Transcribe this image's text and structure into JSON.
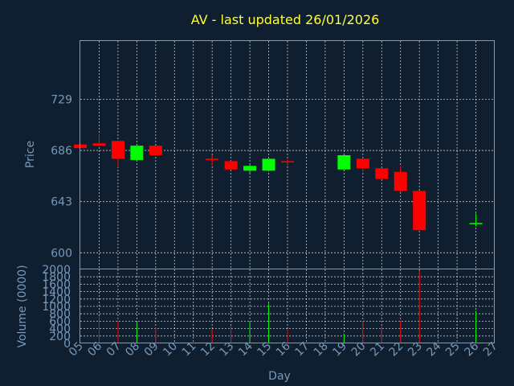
{
  "chart_data": {
    "type": "candlestick",
    "title": "AV - last updated 26/01/2026",
    "xlabel": "Day",
    "ylabel_price": "Price",
    "ylabel_volume": "Volume (0000)",
    "x_ticks": [
      "05",
      "06",
      "07",
      "08",
      "09",
      "10",
      "11",
      "12",
      "13",
      "14",
      "15",
      "16",
      "17",
      "18",
      "19",
      "20",
      "21",
      "22",
      "23",
      "24",
      "25",
      "26",
      "27"
    ],
    "price_ticks": [
      600,
      643,
      686,
      729
    ],
    "price_ylim": [
      586,
      778
    ],
    "volume_ticks": [
      0,
      200,
      400,
      600,
      800,
      1000,
      1200,
      1400,
      1600,
      1800,
      2000
    ],
    "volume_ylim": [
      0,
      2000
    ],
    "grid": true,
    "colors": {
      "up": "#00ff00",
      "down": "#ff0000",
      "title": "#ffff33",
      "axis_text": "#7799bb",
      "background": "#0f1f2f"
    },
    "candles": [
      {
        "day": "05",
        "open": 691,
        "high": 692,
        "low": 688,
        "close": 688,
        "volume": 0
      },
      {
        "day": "06",
        "open": 692,
        "high": 700,
        "low": 690,
        "close": 690,
        "volume": 720
      },
      {
        "day": "07",
        "open": 694,
        "high": 694,
        "low": 672,
        "close": 679,
        "volume": 600
      },
      {
        "day": "08",
        "open": 678,
        "high": 691,
        "low": 678,
        "close": 690,
        "volume": 560
      },
      {
        "day": "09",
        "open": 690,
        "high": 690,
        "low": 682,
        "close": 682,
        "volume": 430
      },
      {
        "day": "12",
        "open": 679,
        "high": 682,
        "low": 673,
        "close": 678,
        "volume": 380
      },
      {
        "day": "13",
        "open": 677,
        "high": 677,
        "low": 670,
        "close": 670,
        "volume": 480
      },
      {
        "day": "14",
        "open": 669,
        "high": 674,
        "low": 667,
        "close": 673,
        "volume": 600
      },
      {
        "day": "15",
        "open": 669,
        "high": 679,
        "low": 669,
        "close": 679,
        "volume": 1080
      },
      {
        "day": "16",
        "open": 677,
        "high": 679,
        "low": 673,
        "close": 676,
        "volume": 380
      },
      {
        "day": "19",
        "open": 670,
        "high": 682,
        "low": 670,
        "close": 682,
        "volume": 260
      },
      {
        "day": "20",
        "open": 679,
        "high": 679,
        "low": 668,
        "close": 671,
        "volume": 620
      },
      {
        "day": "21",
        "open": 671,
        "high": 671,
        "low": 662,
        "close": 662,
        "volume": 480
      },
      {
        "day": "22",
        "open": 668,
        "high": 673,
        "low": 651,
        "close": 652,
        "volume": 620
      },
      {
        "day": "23",
        "open": 652,
        "high": 652,
        "low": 619,
        "close": 619,
        "volume": 1950
      },
      {
        "day": "26",
        "open": 624,
        "high": 633,
        "low": 622,
        "close": 625,
        "volume": 880
      }
    ]
  }
}
